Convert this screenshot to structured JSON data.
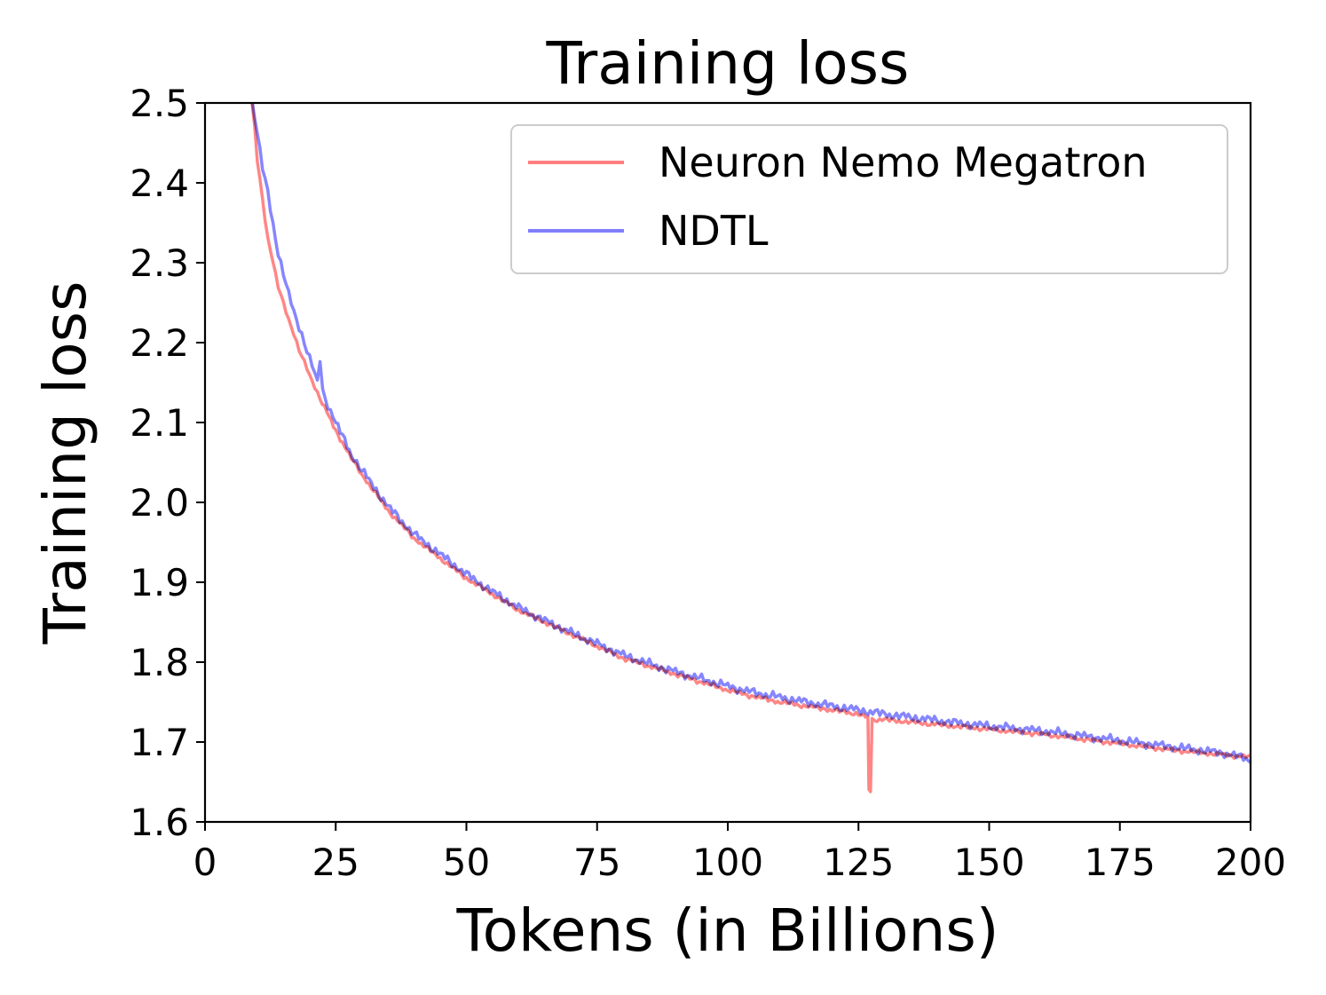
{
  "chart_data": {
    "type": "line",
    "title": "Training loss",
    "xlabel": "Tokens (in Billions)",
    "ylabel": "Training loss",
    "xlim": [
      0,
      200
    ],
    "ylim": [
      1.6,
      2.5
    ],
    "xticks": [
      {
        "value": 0,
        "label": "0"
      },
      {
        "value": 25,
        "label": "25"
      },
      {
        "value": 50,
        "label": "50"
      },
      {
        "value": 75,
        "label": "75"
      },
      {
        "value": 100,
        "label": "100"
      },
      {
        "value": 125,
        "label": "125"
      },
      {
        "value": 150,
        "label": "150"
      },
      {
        "value": 175,
        "label": "175"
      },
      {
        "value": 200,
        "label": "200"
      }
    ],
    "yticks": [
      {
        "value": 1.6,
        "label": "1.6"
      },
      {
        "value": 1.7,
        "label": "1.7"
      },
      {
        "value": 1.8,
        "label": "1.8"
      },
      {
        "value": 1.9,
        "label": "1.9"
      },
      {
        "value": 2.0,
        "label": "2.0"
      },
      {
        "value": 2.1,
        "label": "2.1"
      },
      {
        "value": 2.2,
        "label": "2.2"
      },
      {
        "value": 2.3,
        "label": "2.3"
      },
      {
        "value": 2.4,
        "label": "2.4"
      },
      {
        "value": 2.5,
        "label": "2.5"
      }
    ],
    "grid": false,
    "legend": "top-right",
    "series": [
      {
        "name": "Neuron Nemo Megatron",
        "color": "#ff7f7f",
        "x": [
          9,
          9.5,
          10,
          11,
          12,
          13,
          14,
          16,
          18,
          20,
          22,
          25,
          28,
          30,
          35,
          40,
          45,
          50,
          55,
          60,
          65,
          70,
          75,
          80,
          85,
          90,
          95,
          100,
          105,
          110,
          115,
          120,
          125,
          126.8,
          127,
          127.3,
          127.6,
          130,
          135,
          140,
          145,
          150,
          155,
          160,
          165,
          170,
          175,
          180,
          185,
          190,
          195,
          200
        ],
        "y": [
          2.5,
          2.47,
          2.43,
          2.38,
          2.33,
          2.3,
          2.27,
          2.23,
          2.19,
          2.16,
          2.13,
          2.09,
          2.055,
          2.035,
          1.99,
          1.955,
          1.93,
          1.905,
          1.885,
          1.865,
          1.85,
          1.835,
          1.82,
          1.805,
          1.795,
          1.785,
          1.775,
          1.765,
          1.757,
          1.75,
          1.745,
          1.74,
          1.735,
          1.73,
          1.64,
          1.64,
          1.728,
          1.728,
          1.725,
          1.722,
          1.719,
          1.716,
          1.713,
          1.71,
          1.706,
          1.702,
          1.698,
          1.694,
          1.69,
          1.687,
          1.684,
          1.681
        ]
      },
      {
        "name": "NDTL",
        "color": "#7f7fff",
        "x": [
          9,
          10,
          11,
          12,
          13,
          14,
          16,
          18,
          20,
          21.5,
          22,
          22.5,
          23,
          25,
          28,
          30,
          35,
          40,
          45,
          50,
          55,
          60,
          65,
          70,
          75,
          80,
          85,
          90,
          95,
          100,
          105,
          110,
          115,
          120,
          125,
          130,
          135,
          140,
          145,
          150,
          155,
          160,
          165,
          170,
          175,
          180,
          185,
          190,
          195,
          200
        ],
        "y": [
          2.5,
          2.46,
          2.42,
          2.39,
          2.35,
          2.31,
          2.26,
          2.22,
          2.18,
          2.15,
          2.18,
          2.14,
          2.13,
          2.1,
          2.06,
          2.04,
          1.995,
          1.96,
          1.935,
          1.91,
          1.888,
          1.868,
          1.852,
          1.837,
          1.823,
          1.809,
          1.798,
          1.788,
          1.779,
          1.77,
          1.762,
          1.756,
          1.75,
          1.745,
          1.74,
          1.735,
          1.731,
          1.727,
          1.723,
          1.72,
          1.717,
          1.714,
          1.71,
          1.706,
          1.702,
          1.698,
          1.694,
          1.69,
          1.686,
          1.678
        ]
      }
    ]
  }
}
